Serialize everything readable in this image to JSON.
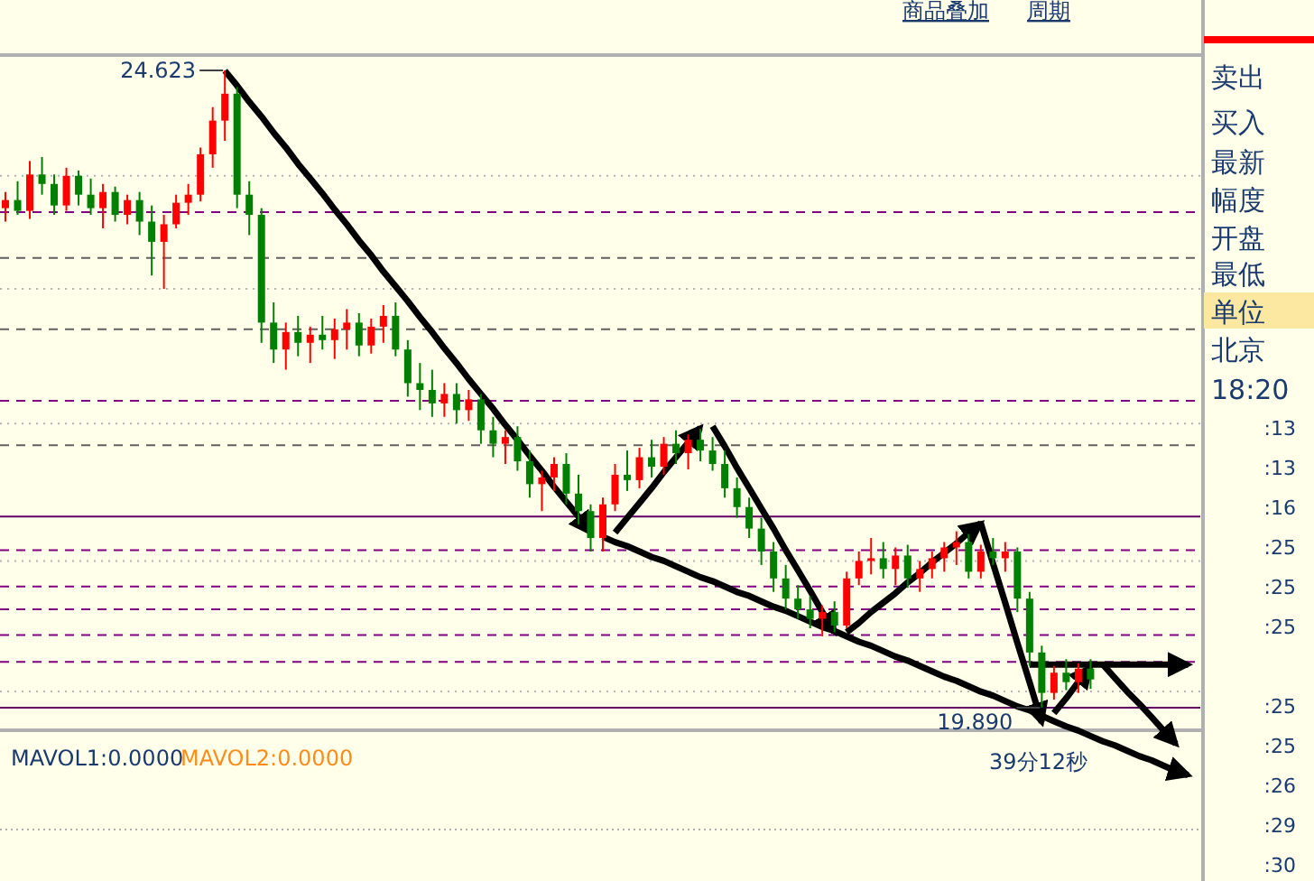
{
  "chart_data": {
    "type": "candlestick",
    "categories": [
      null,
      null,
      null,
      null,
      null,
      null,
      null,
      null,
      null,
      null,
      null,
      null,
      null,
      null,
      null,
      null,
      null,
      null,
      null,
      null,
      null,
      null,
      null,
      null,
      null,
      null,
      null,
      null,
      null,
      null,
      null,
      null,
      null,
      null,
      null,
      null,
      null,
      null,
      null,
      null,
      null,
      null,
      null,
      null,
      null,
      null,
      null,
      null,
      null,
      null,
      null,
      null,
      null,
      null,
      null,
      null,
      null,
      null,
      null,
      null,
      null,
      null,
      null,
      null,
      null,
      null,
      null,
      null,
      null,
      null,
      null,
      null,
      null,
      null,
      null,
      null,
      null,
      null,
      null,
      null,
      null,
      null,
      null,
      null,
      null,
      null,
      null,
      null,
      null,
      null,
      null,
      null,
      null,
      null,
      null,
      null,
      null,
      null
    ],
    "ohlc": [
      [
        23.6,
        23.72,
        23.5,
        23.66
      ],
      [
        23.66,
        23.8,
        23.55,
        23.58
      ],
      [
        23.58,
        23.95,
        23.52,
        23.85
      ],
      [
        23.85,
        23.98,
        23.7,
        23.78
      ],
      [
        23.78,
        23.85,
        23.55,
        23.62
      ],
      [
        23.62,
        23.9,
        23.58,
        23.84
      ],
      [
        23.84,
        23.88,
        23.62,
        23.7
      ],
      [
        23.7,
        23.82,
        23.55,
        23.6
      ],
      [
        23.6,
        23.78,
        23.45,
        23.72
      ],
      [
        23.72,
        23.76,
        23.5,
        23.55
      ],
      [
        23.55,
        23.7,
        23.48,
        23.66
      ],
      [
        23.66,
        23.72,
        23.4,
        23.5
      ],
      [
        23.5,
        23.62,
        23.1,
        23.35
      ],
      [
        23.35,
        23.55,
        23.0,
        23.48
      ],
      [
        23.48,
        23.7,
        23.45,
        23.64
      ],
      [
        23.64,
        23.78,
        23.55,
        23.7
      ],
      [
        23.7,
        24.05,
        23.65,
        24.0
      ],
      [
        24.0,
        24.35,
        23.9,
        24.25
      ],
      [
        24.25,
        24.623,
        24.1,
        24.45
      ],
      [
        24.45,
        24.5,
        23.6,
        23.7
      ],
      [
        23.7,
        23.8,
        23.4,
        23.55
      ],
      [
        23.55,
        23.6,
        22.6,
        22.75
      ],
      [
        22.75,
        22.9,
        22.45,
        22.55
      ],
      [
        22.55,
        22.75,
        22.4,
        22.68
      ],
      [
        22.68,
        22.8,
        22.5,
        22.6
      ],
      [
        22.6,
        22.72,
        22.45,
        22.66
      ],
      [
        22.66,
        22.8,
        22.55,
        22.62
      ],
      [
        22.62,
        22.78,
        22.48,
        22.7
      ],
      [
        22.7,
        22.85,
        22.55,
        22.75
      ],
      [
        22.75,
        22.82,
        22.5,
        22.58
      ],
      [
        22.58,
        22.78,
        22.52,
        22.72
      ],
      [
        22.72,
        22.88,
        22.6,
        22.8
      ],
      [
        22.8,
        22.9,
        22.5,
        22.55
      ],
      [
        22.55,
        22.62,
        22.2,
        22.3
      ],
      [
        22.3,
        22.45,
        22.1,
        22.25
      ],
      [
        22.25,
        22.4,
        22.05,
        22.15
      ],
      [
        22.15,
        22.3,
        22.05,
        22.22
      ],
      [
        22.22,
        22.3,
        22.0,
        22.1
      ],
      [
        22.1,
        22.25,
        22.02,
        22.18
      ],
      [
        22.18,
        22.22,
        21.85,
        21.95
      ],
      [
        21.95,
        22.05,
        21.75,
        21.85
      ],
      [
        21.85,
        21.95,
        21.7,
        21.9
      ],
      [
        21.9,
        21.98,
        21.65,
        21.72
      ],
      [
        21.72,
        21.8,
        21.45,
        21.55
      ],
      [
        21.55,
        21.65,
        21.35,
        21.6
      ],
      [
        21.6,
        21.75,
        21.5,
        21.7
      ],
      [
        21.7,
        21.78,
        21.4,
        21.48
      ],
      [
        21.48,
        21.62,
        21.25,
        21.35
      ],
      [
        21.35,
        21.4,
        21.05,
        21.15
      ],
      [
        21.15,
        21.45,
        21.05,
        21.4
      ],
      [
        21.4,
        21.7,
        21.35,
        21.62
      ],
      [
        21.62,
        21.8,
        21.5,
        21.58
      ],
      [
        21.58,
        21.82,
        21.52,
        21.75
      ],
      [
        21.75,
        21.88,
        21.6,
        21.68
      ],
      [
        21.68,
        21.9,
        21.62,
        21.85
      ],
      [
        21.85,
        21.95,
        21.7,
        21.78
      ],
      [
        21.78,
        21.92,
        21.66,
        21.88
      ],
      [
        21.88,
        21.96,
        21.72,
        21.8
      ],
      [
        21.8,
        21.9,
        21.65,
        21.7
      ],
      [
        21.7,
        21.8,
        21.45,
        21.52
      ],
      [
        21.52,
        21.6,
        21.3,
        21.38
      ],
      [
        21.38,
        21.45,
        21.15,
        21.22
      ],
      [
        21.22,
        21.3,
        20.95,
        21.05
      ],
      [
        21.05,
        21.12,
        20.75,
        20.85
      ],
      [
        20.85,
        20.95,
        20.62,
        20.7
      ],
      [
        20.7,
        20.8,
        20.55,
        20.62
      ],
      [
        20.62,
        20.72,
        20.48,
        20.55
      ],
      [
        20.55,
        20.65,
        20.42,
        20.6
      ],
      [
        20.6,
        20.68,
        20.45,
        20.5
      ],
      [
        20.5,
        20.9,
        20.48,
        20.85
      ],
      [
        20.85,
        21.05,
        20.8,
        20.98
      ],
      [
        20.98,
        21.15,
        20.88,
        21.0
      ],
      [
        21.0,
        21.12,
        20.85,
        20.92
      ],
      [
        20.92,
        21.08,
        20.8,
        21.02
      ],
      [
        21.02,
        21.1,
        20.78,
        20.85
      ],
      [
        20.85,
        20.98,
        20.75,
        20.92
      ],
      [
        20.92,
        21.05,
        20.85,
        21.0
      ],
      [
        21.0,
        21.12,
        20.9,
        21.08
      ],
      [
        21.08,
        21.2,
        20.95,
        21.12
      ],
      [
        21.12,
        21.18,
        20.85,
        20.9
      ],
      [
        20.9,
        21.1,
        20.85,
        21.05
      ],
      [
        21.05,
        21.15,
        20.95,
        21.0
      ],
      [
        21.0,
        21.12,
        20.9,
        21.05
      ],
      [
        21.05,
        21.08,
        20.6,
        20.7
      ],
      [
        20.7,
        20.75,
        20.2,
        20.3
      ],
      [
        20.3,
        20.35,
        19.89,
        20.0
      ],
      [
        20.0,
        20.2,
        19.95,
        20.15
      ],
      [
        20.15,
        20.25,
        20.02,
        20.08
      ],
      [
        20.08,
        20.22,
        20.0,
        20.18
      ],
      [
        20.18,
        20.25,
        20.03,
        20.1
      ],
      null,
      null,
      null,
      null,
      null,
      null,
      null,
      null
    ],
    "colors": [
      "#ff0000",
      "#008000",
      "#ff0000",
      "#008000",
      "#008000",
      "#ff0000",
      "#008000",
      "#008000",
      "#ff0000",
      "#008000",
      "#ff0000",
      "#008000",
      "#008000",
      "#ff0000",
      "#ff0000",
      "#ff0000",
      "#ff0000",
      "#ff0000",
      "#ff0000",
      "#008000",
      "#008000",
      "#008000",
      "#008000",
      "#ff0000",
      "#008000",
      "#ff0000",
      "#008000",
      "#ff0000",
      "#ff0000",
      "#008000",
      "#ff0000",
      "#ff0000",
      "#008000",
      "#008000",
      "#008000",
      "#008000",
      "#ff0000",
      "#008000",
      "#ff0000",
      "#008000",
      "#008000",
      "#ff0000",
      "#008000",
      "#008000",
      "#ff0000",
      "#ff0000",
      "#008000",
      "#008000",
      "#008000",
      "#ff0000",
      "#ff0000",
      "#008000",
      "#ff0000",
      "#008000",
      "#ff0000",
      "#008000",
      "#ff0000",
      "#008000",
      "#008000",
      "#008000",
      "#008000",
      "#008000",
      "#008000",
      "#008000",
      "#008000",
      "#008000",
      "#008000",
      "#ff0000",
      "#008000",
      "#ff0000",
      "#ff0000",
      "#ff0000",
      "#008000",
      "#ff0000",
      "#008000",
      "#ff0000",
      "#ff0000",
      "#ff0000",
      "#ff0000",
      "#008000",
      "#ff0000",
      "#008000",
      "#ff0000",
      "#008000",
      "#008000",
      "#008000",
      "#ff0000",
      "#008000",
      "#ff0000",
      "#008000",
      null,
      null,
      null,
      null,
      null,
      null,
      null,
      null
    ],
    "series": [
      {
        "type": "line",
        "color": "#000000",
        "values": [
          null,
          null,
          null,
          null,
          null,
          null,
          null,
          null,
          null,
          null,
          null,
          null,
          null,
          null,
          null,
          null,
          null,
          null,
          24.62,
          24.51,
          24.39,
          24.28,
          24.16,
          24.05,
          23.93,
          23.82,
          23.71,
          23.59,
          23.48,
          23.36,
          23.25,
          23.13,
          23.02,
          22.91,
          22.79,
          22.68,
          22.56,
          22.45,
          22.33,
          22.22,
          22.11,
          21.99,
          21.88,
          21.76,
          21.65,
          21.53,
          21.42,
          21.31,
          21.19,
          null,
          null,
          null,
          null,
          null,
          null,
          null,
          null,
          null,
          null,
          null,
          null,
          null,
          null,
          null,
          null,
          null,
          null,
          null,
          null,
          null,
          null,
          null,
          null,
          null,
          null,
          null,
          null,
          null,
          null,
          null,
          null,
          null,
          null,
          null,
          null,
          null,
          null,
          null,
          null,
          null,
          null,
          null,
          null,
          null,
          null,
          null,
          null,
          null
        ]
      },
      {
        "type": "line",
        "color": "#000000",
        "values": [
          null,
          null,
          null,
          null,
          null,
          null,
          null,
          null,
          null,
          null,
          null,
          null,
          null,
          null,
          null,
          null,
          null,
          null,
          null,
          null,
          null,
          null,
          null,
          null,
          null,
          null,
          null,
          null,
          null,
          null,
          null,
          null,
          null,
          null,
          null,
          null,
          null,
          null,
          null,
          null,
          null,
          null,
          null,
          null,
          null,
          null,
          null,
          null,
          null,
          21.16,
          21.12,
          21.09,
          21.05,
          21.01,
          20.98,
          20.94,
          20.9,
          20.86,
          20.83,
          20.79,
          20.75,
          20.72,
          20.68,
          20.64,
          20.61,
          20.57,
          20.53,
          20.49,
          20.46,
          20.42,
          20.38,
          20.35,
          20.31,
          20.27,
          20.24,
          20.2,
          20.16,
          20.12,
          20.09,
          20.05,
          20.01,
          19.98,
          19.94,
          19.9,
          19.87,
          19.83,
          19.79,
          19.75,
          19.72,
          19.68,
          19.64,
          19.61,
          19.57,
          19.53,
          19.5,
          19.46,
          19.42,
          19.39
        ]
      },
      {
        "type": "line",
        "color": "#000000",
        "values": [
          null,
          null,
          null,
          null,
          null,
          null,
          null,
          null,
          null,
          null,
          null,
          null,
          null,
          null,
          null,
          null,
          null,
          null,
          null,
          null,
          null,
          null,
          null,
          null,
          null,
          null,
          null,
          null,
          null,
          null,
          null,
          null,
          null,
          null,
          null,
          null,
          null,
          null,
          null,
          null,
          null,
          null,
          null,
          null,
          null,
          null,
          null,
          null,
          null,
          null,
          21.19,
          21.3,
          21.41,
          21.52,
          21.64,
          21.75,
          21.86,
          21.97,
          null,
          null,
          null,
          null,
          null,
          null,
          null,
          null,
          null,
          null,
          null,
          null,
          null,
          null,
          null,
          null,
          null,
          null,
          null,
          null,
          null,
          null,
          null,
          null,
          null,
          null,
          null,
          null,
          null,
          null,
          null,
          null,
          null,
          null,
          null,
          null,
          null,
          null,
          null,
          null
        ]
      },
      {
        "type": "line",
        "color": "#000000",
        "values": [
          null,
          null,
          null,
          null,
          null,
          null,
          null,
          null,
          null,
          null,
          null,
          null,
          null,
          null,
          null,
          null,
          null,
          null,
          null,
          null,
          null,
          null,
          null,
          null,
          null,
          null,
          null,
          null,
          null,
          null,
          null,
          null,
          null,
          null,
          null,
          null,
          null,
          null,
          null,
          null,
          null,
          null,
          null,
          null,
          null,
          null,
          null,
          null,
          null,
          null,
          null,
          null,
          null,
          null,
          null,
          null,
          null,
          null,
          21.98,
          21.83,
          21.67,
          21.52,
          21.37,
          21.22,
          21.06,
          20.91,
          20.76,
          20.6,
          20.45,
          null,
          null,
          null,
          null,
          null,
          null,
          null,
          null,
          null,
          null,
          null,
          null,
          null,
          null,
          null,
          null,
          null,
          null,
          null,
          null,
          null,
          null,
          null,
          null,
          null,
          null,
          null,
          null,
          null
        ]
      },
      {
        "type": "line",
        "color": "#000000",
        "values": [
          null,
          null,
          null,
          null,
          null,
          null,
          null,
          null,
          null,
          null,
          null,
          null,
          null,
          null,
          null,
          null,
          null,
          null,
          null,
          null,
          null,
          null,
          null,
          null,
          null,
          null,
          null,
          null,
          null,
          null,
          null,
          null,
          null,
          null,
          null,
          null,
          null,
          null,
          null,
          null,
          null,
          null,
          null,
          null,
          null,
          null,
          null,
          null,
          null,
          null,
          null,
          null,
          null,
          null,
          null,
          null,
          null,
          null,
          null,
          null,
          null,
          null,
          null,
          null,
          null,
          null,
          null,
          null,
          null,
          20.45,
          20.52,
          20.6,
          20.67,
          20.74,
          20.82,
          20.89,
          20.97,
          21.04,
          21.11,
          21.19,
          21.26,
          null,
          null,
          null,
          null,
          null,
          null,
          null,
          null,
          null,
          null,
          null,
          null,
          null,
          null,
          null,
          null,
          null
        ]
      },
      {
        "type": "line",
        "color": "#000000",
        "values": [
          null,
          null,
          null,
          null,
          null,
          null,
          null,
          null,
          null,
          null,
          null,
          null,
          null,
          null,
          null,
          null,
          null,
          null,
          null,
          null,
          null,
          null,
          null,
          null,
          null,
          null,
          null,
          null,
          null,
          null,
          null,
          null,
          null,
          null,
          null,
          null,
          null,
          null,
          null,
          null,
          null,
          null,
          null,
          null,
          null,
          null,
          null,
          null,
          null,
          null,
          null,
          null,
          null,
          null,
          null,
          null,
          null,
          null,
          null,
          null,
          null,
          null,
          null,
          null,
          null,
          null,
          null,
          null,
          null,
          null,
          null,
          null,
          null,
          null,
          null,
          null,
          null,
          null,
          null,
          null,
          21.26,
          20.96,
          20.67,
          20.37,
          20.08,
          19.78,
          null,
          null,
          null,
          null,
          null,
          null,
          null,
          null,
          null,
          null,
          null,
          null
        ]
      },
      {
        "type": "line",
        "color": "#000000",
        "values": [
          null,
          null,
          null,
          null,
          null,
          null,
          null,
          null,
          null,
          null,
          null,
          null,
          null,
          null,
          null,
          null,
          null,
          null,
          null,
          null,
          null,
          null,
          null,
          null,
          null,
          null,
          null,
          null,
          null,
          null,
          null,
          null,
          null,
          null,
          null,
          null,
          null,
          null,
          null,
          null,
          null,
          null,
          null,
          null,
          null,
          null,
          null,
          null,
          null,
          null,
          null,
          null,
          null,
          null,
          null,
          null,
          null,
          null,
          null,
          null,
          null,
          null,
          null,
          null,
          null,
          null,
          null,
          null,
          null,
          null,
          null,
          null,
          null,
          null,
          null,
          null,
          null,
          null,
          null,
          null,
          null,
          null,
          null,
          null,
          null,
          null,
          19.85,
          19.96,
          20.08,
          20.19,
          null,
          null,
          null,
          null,
          null,
          null,
          null,
          null
        ]
      },
      {
        "type": "line",
        "color": "#000000",
        "values": [
          null,
          null,
          null,
          null,
          null,
          null,
          null,
          null,
          null,
          null,
          null,
          null,
          null,
          null,
          null,
          null,
          null,
          null,
          null,
          null,
          null,
          null,
          null,
          null,
          null,
          null,
          null,
          null,
          null,
          null,
          null,
          null,
          null,
          null,
          null,
          null,
          null,
          null,
          null,
          null,
          null,
          null,
          null,
          null,
          null,
          null,
          null,
          null,
          null,
          null,
          null,
          null,
          null,
          null,
          null,
          null,
          null,
          null,
          null,
          null,
          null,
          null,
          null,
          null,
          null,
          null,
          null,
          null,
          null,
          null,
          null,
          null,
          null,
          null,
          null,
          null,
          null,
          null,
          null,
          null,
          null,
          null,
          null,
          null,
          20.21,
          20.21,
          20.21,
          20.21,
          20.21,
          20.21,
          20.21,
          20.21,
          20.21,
          20.21,
          20.21,
          20.21,
          20.21,
          20.21
        ]
      },
      {
        "type": "line",
        "color": "#000000",
        "values": [
          null,
          null,
          null,
          null,
          null,
          null,
          null,
          null,
          null,
          null,
          null,
          null,
          null,
          null,
          null,
          null,
          null,
          null,
          null,
          null,
          null,
          null,
          null,
          null,
          null,
          null,
          null,
          null,
          null,
          null,
          null,
          null,
          null,
          null,
          null,
          null,
          null,
          null,
          null,
          null,
          null,
          null,
          null,
          null,
          null,
          null,
          null,
          null,
          null,
          null,
          null,
          null,
          null,
          null,
          null,
          null,
          null,
          null,
          null,
          null,
          null,
          null,
          null,
          null,
          null,
          null,
          null,
          null,
          null,
          null,
          null,
          null,
          null,
          null,
          null,
          null,
          null,
          null,
          null,
          null,
          null,
          null,
          null,
          null,
          null,
          null,
          null,
          null,
          null,
          null,
          20.21,
          20.11,
          20.01,
          19.92,
          19.82,
          19.72,
          19.62,
          null
        ]
      }
    ],
    "ref_lines": [
      {
        "axis": "y",
        "value": 23.84,
        "color": "#b4b4b4",
        "line_style": "dotted"
      },
      {
        "axis": "y",
        "value": 23.57,
        "color": "#800080",
        "line_style": "dashed"
      },
      {
        "axis": "y",
        "value": 23.23,
        "color": "#606060",
        "line_style": "dashed"
      },
      {
        "axis": "y",
        "value": 23.0,
        "color": "#b4b4b4",
        "line_style": "dotted"
      },
      {
        "axis": "y",
        "value": 22.7,
        "color": "#606060",
        "line_style": "dashed"
      },
      {
        "axis": "y",
        "value": 22.17,
        "color": "#800080",
        "line_style": "dashed"
      },
      {
        "axis": "y",
        "value": 22.0,
        "color": "#b4b4b4",
        "line_style": "dotted"
      },
      {
        "axis": "y",
        "value": 21.84,
        "color": "#606060",
        "line_style": "dashed"
      },
      {
        "axis": "y",
        "value": 21.31,
        "color": "#600060",
        "line_style": "solid"
      },
      {
        "axis": "y",
        "value": 21.06,
        "color": "#800080",
        "line_style": "dashed"
      },
      {
        "axis": "y",
        "value": 20.98,
        "color": "#b4b4b4",
        "line_style": "dotted"
      },
      {
        "axis": "y",
        "value": 20.79,
        "color": "#800080",
        "line_style": "dashed"
      },
      {
        "axis": "y",
        "value": 20.62,
        "color": "#800080",
        "line_style": "dashed"
      },
      {
        "axis": "y",
        "value": 20.43,
        "color": "#800080",
        "line_style": "dashed"
      },
      {
        "axis": "y",
        "value": 20.23,
        "color": "#800080",
        "line_style": "dashed"
      },
      {
        "axis": "y",
        "value": 20.01,
        "color": "#b4b4b4",
        "line_style": "dotted"
      },
      {
        "axis": "y",
        "value": 19.89,
        "color": "#600060",
        "line_style": "solid"
      }
    ],
    "annotations": [
      "24.623",
      "19.890",
      "39分12秒",
      "MAVOL1:0.0000",
      "MAVOL2:0.0000",
      "商品叠加",
      "周期",
      "卖出",
      "买入",
      "最新",
      "幅度",
      "开盘",
      "最低",
      "单位",
      "北京",
      "18:20",
      ":13",
      ":13",
      ":16",
      ":25",
      ":25",
      ":25",
      ":25",
      ":25",
      ":26",
      ":29",
      ":30"
    ]
  }
}
